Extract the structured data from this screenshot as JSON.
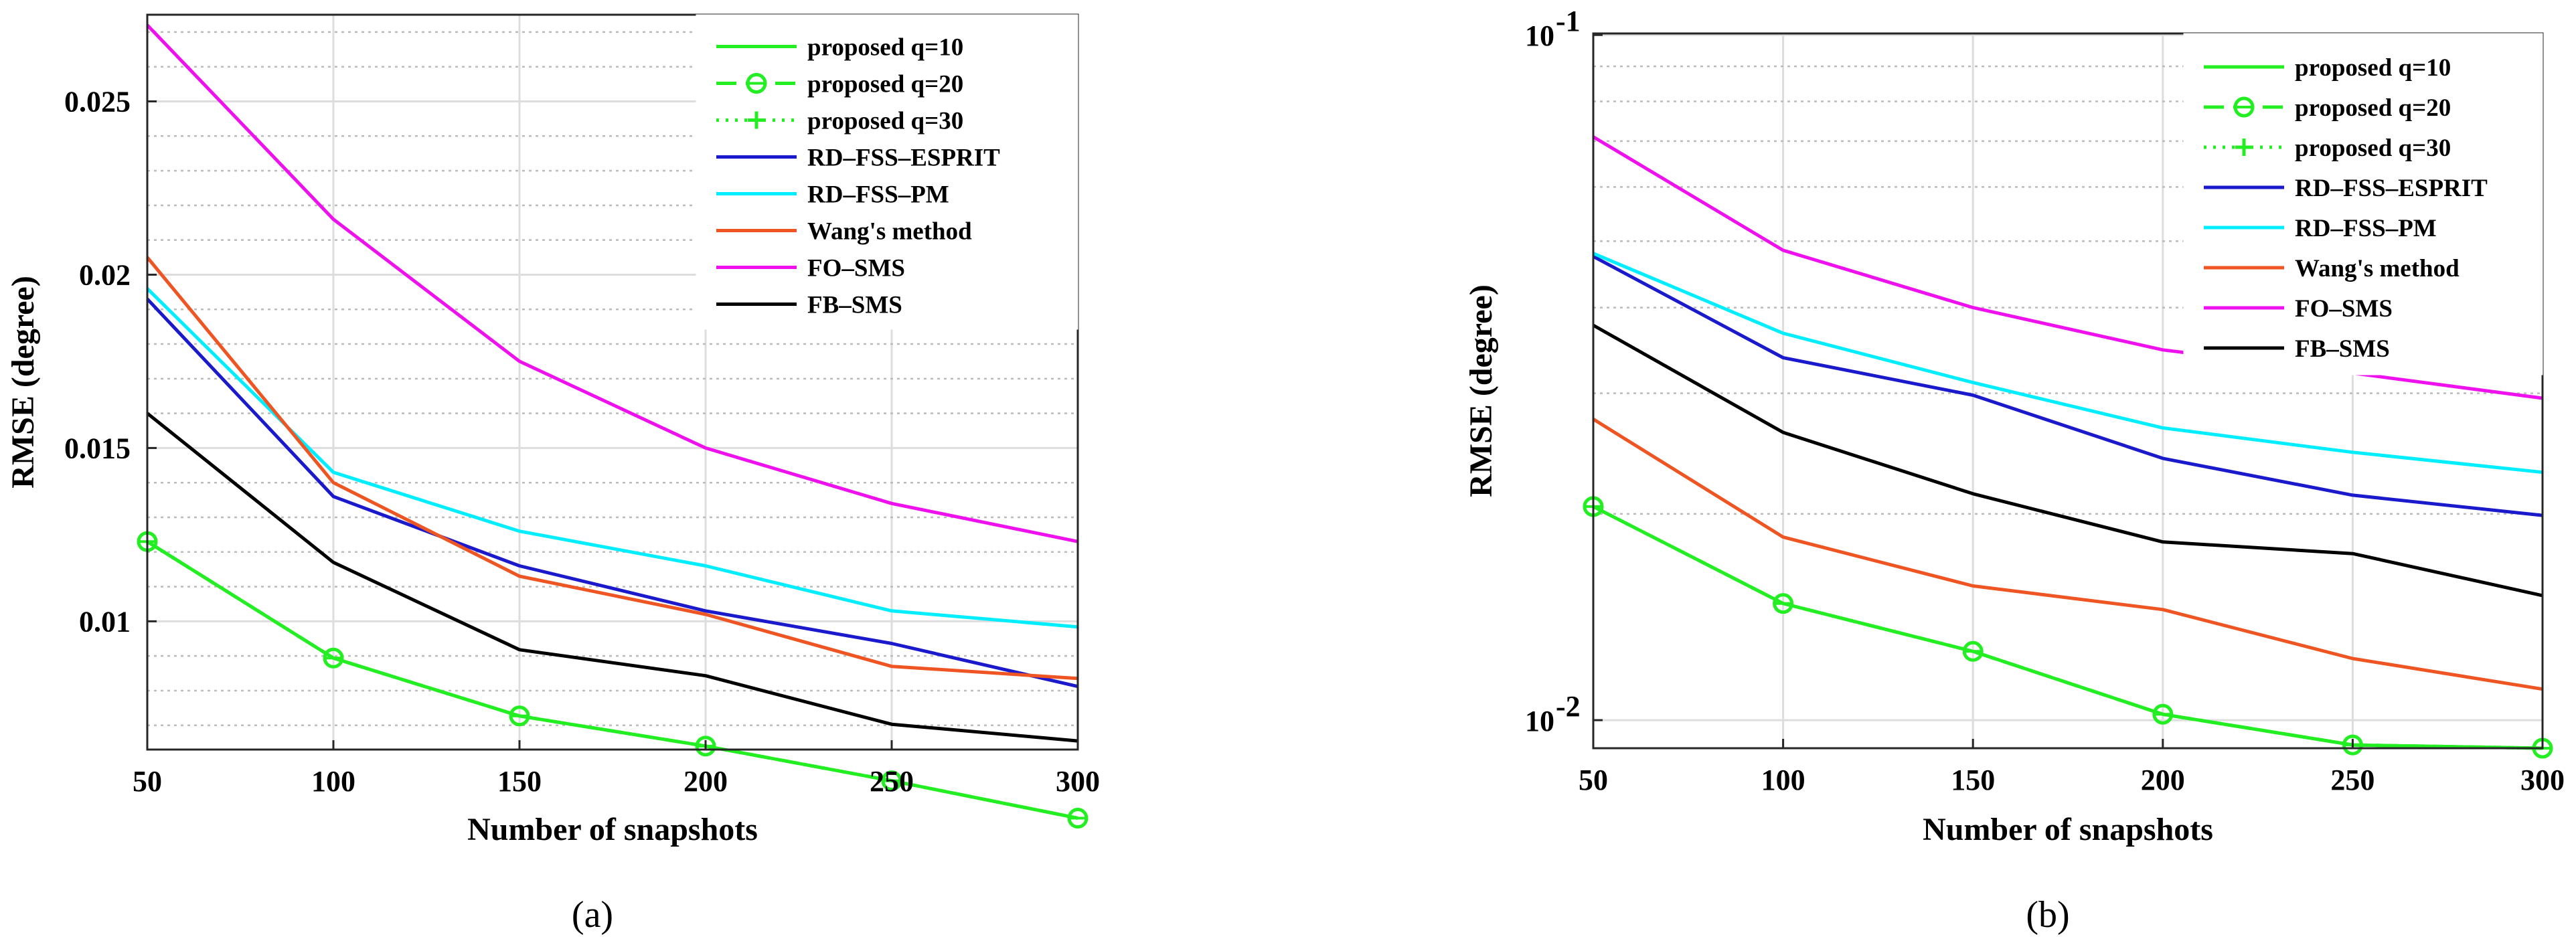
{
  "chart_data": [
    {
      "type": "line",
      "panel_label": "(a)",
      "xlabel": "Number of snapshots",
      "ylabel": "RMSE (degree)",
      "yscale": "linear",
      "xlim": [
        50,
        300
      ],
      "ylim": [
        0.0063,
        0.0275
      ],
      "x": [
        50,
        100,
        150,
        200,
        250,
        300
      ],
      "x_ticks": [
        50,
        100,
        150,
        200,
        250,
        300
      ],
      "x_tick_labels": [
        "50",
        "100",
        "150",
        "200",
        "250",
        "300"
      ],
      "y_ticks": [
        0.01,
        0.015,
        0.02,
        0.025
      ],
      "y_tick_labels": [
        "0.01",
        "0.015",
        "0.02",
        "0.025"
      ],
      "grid": true,
      "legend_position": "top-right",
      "series": [
        {
          "name": "proposed q=10",
          "color": "#22ee22",
          "style": "solid",
          "marker": "none",
          "values": [
            0.0123,
            0.00894,
            0.00727,
            0.0064,
            0.0054,
            0.00432
          ]
        },
        {
          "name": "proposed q=20",
          "color": "#22ee22",
          "style": "dashed",
          "marker": "circle",
          "values": [
            0.0123,
            0.00894,
            0.00727,
            0.0064,
            0.0054,
            0.00432
          ]
        },
        {
          "name": "proposed q=30",
          "color": "#22ee22",
          "style": "dotted",
          "marker": "plus",
          "values": [
            0.0123,
            0.00894,
            0.00727,
            0.0064,
            0.0054,
            0.00432
          ]
        },
        {
          "name": "RD–FSS–ESPRIT",
          "color": "#1a1acc",
          "style": "solid",
          "marker": "none",
          "values": [
            0.0193,
            0.0136,
            0.0116,
            0.0103,
            0.00936,
            0.00812
          ]
        },
        {
          "name": "RD–FSS–PM",
          "color": "#00eeff",
          "style": "solid",
          "marker": "none",
          "values": [
            0.0196,
            0.0143,
            0.0126,
            0.0116,
            0.0103,
            0.00984
          ]
        },
        {
          "name": "Wang's method",
          "color": "#ee5522",
          "style": "solid",
          "marker": "none",
          "values": [
            0.0205,
            0.014,
            0.0113,
            0.0102,
            0.0087,
            0.00835
          ]
        },
        {
          "name": "FO–SMS",
          "color": "#ee11ee",
          "style": "solid",
          "marker": "none",
          "values": [
            0.0272,
            0.0216,
            0.0175,
            0.015,
            0.0134,
            0.0123
          ]
        },
        {
          "name": "FB–SMS",
          "color": "#000000",
          "style": "solid",
          "marker": "none",
          "values": [
            0.016,
            0.0117,
            0.00918,
            0.00843,
            0.00703,
            0.00655
          ]
        }
      ]
    },
    {
      "type": "line",
      "panel_label": "(b)",
      "xlabel": "Number of snapshots",
      "ylabel": "RMSE (degree)",
      "yscale": "log",
      "xlim": [
        50,
        300
      ],
      "ylim": [
        0.0091,
        0.1005
      ],
      "x": [
        50,
        100,
        150,
        200,
        250,
        300
      ],
      "x_ticks": [
        50,
        100,
        150,
        200,
        250,
        300
      ],
      "x_tick_labels": [
        "50",
        "100",
        "150",
        "200",
        "250",
        "300"
      ],
      "y_ticks": [
        0.01,
        0.1
      ],
      "y_tick_labels": [
        [
          "10",
          "-2"
        ],
        [
          "10",
          "-1"
        ]
      ],
      "grid": true,
      "legend_position": "top-right",
      "series": [
        {
          "name": "proposed q=10",
          "color": "#22ee22",
          "style": "solid",
          "marker": "none",
          "values": [
            0.0205,
            0.0148,
            0.0126,
            0.0102,
            0.0092,
            0.0091
          ]
        },
        {
          "name": "proposed q=20",
          "color": "#22ee22",
          "style": "dashed",
          "marker": "circle",
          "values": [
            0.0205,
            0.0148,
            0.0126,
            0.0102,
            0.0092,
            0.0091
          ]
        },
        {
          "name": "proposed q=30",
          "color": "#22ee22",
          "style": "dotted",
          "marker": "plus",
          "values": [
            0.0205,
            0.0148,
            0.0126,
            0.0102,
            0.0092,
            0.0091
          ]
        },
        {
          "name": "RD–FSS–ESPRIT",
          "color": "#1a1acc",
          "style": "solid",
          "marker": "none",
          "values": [
            0.0475,
            0.0338,
            0.0298,
            0.0241,
            0.0213,
            0.0199
          ]
        },
        {
          "name": "RD–FSS–PM",
          "color": "#00eeff",
          "style": "solid",
          "marker": "none",
          "values": [
            0.048,
            0.0367,
            0.0311,
            0.0267,
            0.0246,
            0.023
          ]
        },
        {
          "name": "Wang's method",
          "color": "#ee5522",
          "style": "solid",
          "marker": "none",
          "values": [
            0.0275,
            0.0185,
            0.0157,
            0.0145,
            0.0123,
            0.0111
          ]
        },
        {
          "name": "FO–SMS",
          "color": "#ee11ee",
          "style": "solid",
          "marker": "none",
          "values": [
            0.071,
            0.0485,
            0.04,
            0.0347,
            0.0321,
            0.0295
          ]
        },
        {
          "name": "FB–SMS",
          "color": "#000000",
          "style": "solid",
          "marker": "none",
          "values": [
            0.0377,
            0.0263,
            0.0214,
            0.0182,
            0.0175,
            0.0152
          ]
        }
      ]
    }
  ]
}
